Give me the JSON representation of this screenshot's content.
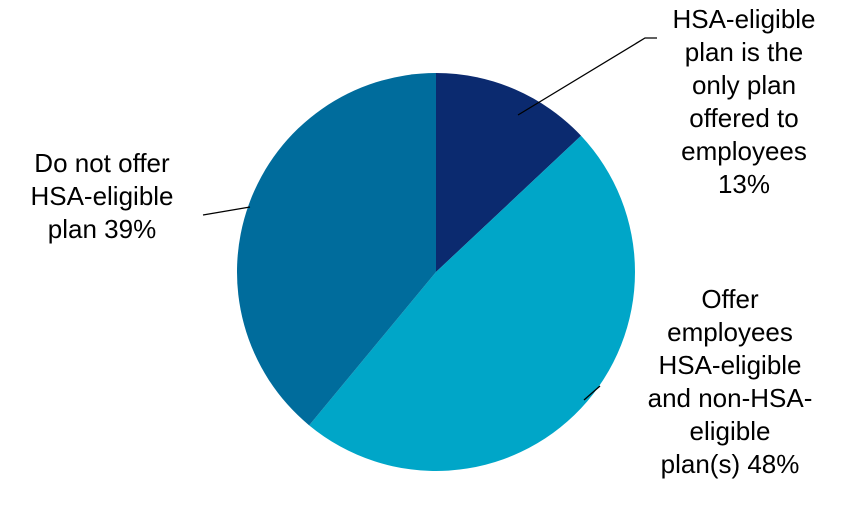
{
  "chart_data": {
    "type": "pie",
    "title": "",
    "start_angle_deg": 0,
    "direction": "clockwise",
    "slices": [
      {
        "label": "HSA-eligible plan is the only plan offered to employees",
        "value": 13,
        "value_label": "13%",
        "label_lines": [
          "HSA-eligible",
          "plan is the",
          "only plan",
          "offered to",
          "employees",
          "13%"
        ],
        "color": "#0b2a6f"
      },
      {
        "label": "Offer employees HSA-eligible and non-HSA-eligible plan(s)",
        "value": 48,
        "value_label": "48%",
        "label_lines": [
          "Offer",
          "employees",
          "HSA-eligible",
          "and non-HSA-",
          "eligible",
          "plan(s) 48%"
        ],
        "color": "#00a6c8"
      },
      {
        "label": "Do not offer HSA-eligible plan",
        "value": 39,
        "value_label": "39%",
        "label_lines": [
          "Do not offer",
          "HSA-eligible",
          "plan 39%"
        ],
        "color": "#006c9c"
      }
    ]
  }
}
